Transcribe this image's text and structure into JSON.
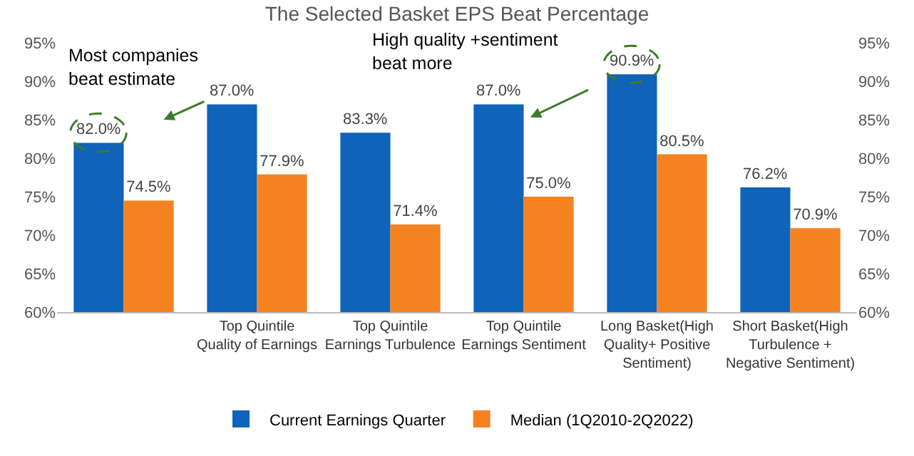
{
  "chart_data": {
    "type": "bar",
    "title": "The Selected Basket EPS Beat Percentage",
    "categories": [
      null,
      "Top Quintile Quality of Earnings",
      "Top Quintile Earnings Turbulence",
      "Top Quintile Earnings Sentiment",
      "Long Basket(High Quality+ Positive Sentiment)",
      "Short Basket(High Turbulence + Negative Sentiment)"
    ],
    "series": [
      {
        "name": "Current Earnings Quarter",
        "color": "#0f63b8",
        "values": [
          82.0,
          87.0,
          83.3,
          87.0,
          90.9,
          76.2
        ],
        "value_labels": [
          "82.0%",
          "87.0%",
          "83.3%",
          "87.0%",
          "90.9%",
          "76.2%"
        ]
      },
      {
        "name": "Median (1Q2010-2Q2022)",
        "color": "#f58220",
        "values": [
          74.5,
          77.9,
          71.4,
          75.0,
          80.5,
          70.9
        ],
        "value_labels": [
          "74.5%",
          "77.9%",
          "71.4%",
          "75.0%",
          "80.5%",
          "70.9%"
        ]
      }
    ],
    "ylim": [
      60,
      95
    ],
    "yticks": [
      {
        "value": 60,
        "label": "60%"
      },
      {
        "value": 65,
        "label": "65%"
      },
      {
        "value": 70,
        "label": "70%"
      },
      {
        "value": 75,
        "label": "75%"
      },
      {
        "value": 80,
        "label": "80%"
      },
      {
        "value": 85,
        "label": "85%"
      },
      {
        "value": 90,
        "label": "90%"
      },
      {
        "value": 95,
        "label": "95%"
      }
    ],
    "y2lim": [
      60,
      95
    ],
    "y2ticks": [
      {
        "value": 60,
        "label": "60%"
      },
      {
        "value": 65,
        "label": "65%"
      },
      {
        "value": 70,
        "label": "70%"
      },
      {
        "value": 75,
        "label": "75%"
      },
      {
        "value": 80,
        "label": "80%"
      },
      {
        "value": 85,
        "label": "85%"
      },
      {
        "value": 90,
        "label": "90%"
      },
      {
        "value": 95,
        "label": "95%"
      }
    ],
    "annotations": [
      "Most companies beat estimate",
      "High quality +sentiment beat more"
    ],
    "grid": false,
    "legend": "bottom"
  }
}
